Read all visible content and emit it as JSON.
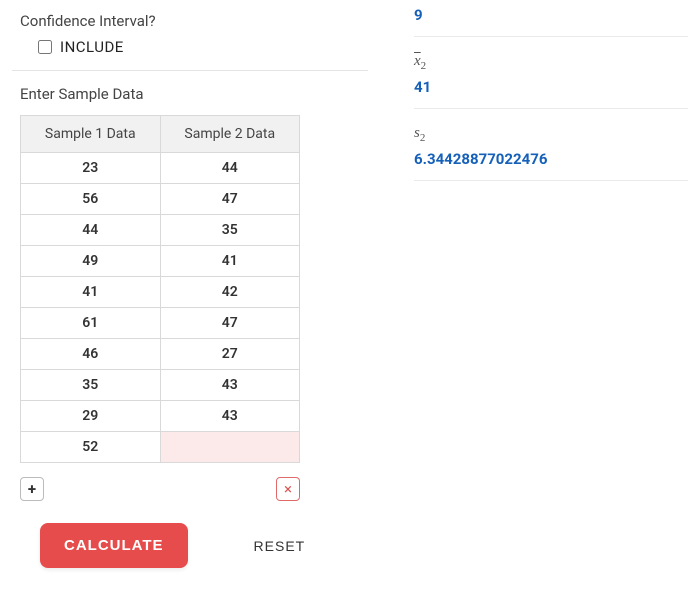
{
  "left": {
    "ci_question": "Confidence Interval?",
    "include_label": "INCLUDE",
    "include_checked": false,
    "enter_label": "Enter Sample Data",
    "table": {
      "headers": [
        "Sample 1 Data",
        "Sample 2 Data"
      ],
      "rows": [
        [
          "23",
          "44"
        ],
        [
          "56",
          "47"
        ],
        [
          "44",
          "35"
        ],
        [
          "49",
          "41"
        ],
        [
          "41",
          "42"
        ],
        [
          "61",
          "47"
        ],
        [
          "46",
          "27"
        ],
        [
          "35",
          "43"
        ],
        [
          "29",
          "43"
        ],
        [
          "52",
          ""
        ]
      ],
      "empty_highlight_color": "#fceaea"
    },
    "add_icon": "+",
    "remove_icon": "×",
    "calculate_label": "CALCULATE",
    "reset_label": "RESET"
  },
  "right": {
    "stats": [
      {
        "label_html": "",
        "value": "9"
      },
      {
        "label_html": "x̄2",
        "value": "41"
      },
      {
        "label_html": "s2",
        "value": "6.34428877022476"
      }
    ]
  },
  "colors": {
    "accent_red": "#e74c4c",
    "link_blue": "#1560b8",
    "border_gray": "#d9d9d9",
    "header_bg": "#f1f1f1"
  }
}
